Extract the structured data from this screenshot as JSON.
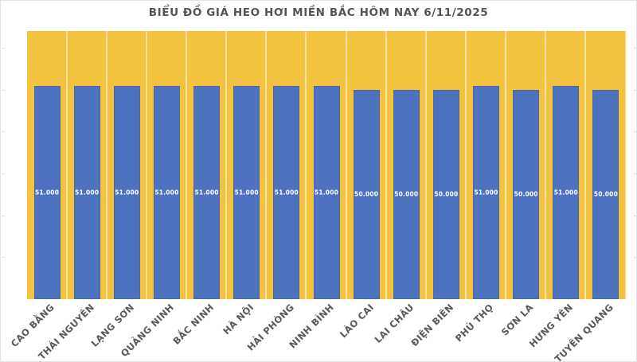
{
  "window": {
    "background": "#FFFFFF",
    "border_color": "#E4E4E4"
  },
  "chart_data": {
    "type": "bar",
    "title": "BIỂU ĐỒ GIÁ HEO HƠI MIỀN BẮC HÔM NAY 6/11/2025",
    "categories": [
      "CAO BẰNG",
      "THÁI NGUYÊN",
      "LẠNG SƠN",
      "QUẢNG NINH",
      "BẮC NINH",
      "HÀ NỘI",
      "HẢI PHÒNG",
      "NINH BÌNH",
      "LÀO CAI",
      "LAI CHÂU",
      "ĐIỆN BIÊN",
      "PHÚ THỌ",
      "SƠN LA",
      "HƯNG YÊN",
      "TUYÊN QUANG"
    ],
    "values": [
      51000,
      51000,
      51000,
      51000,
      51000,
      51000,
      51000,
      51000,
      50000,
      50000,
      50000,
      51000,
      50000,
      51000,
      50000
    ],
    "data_labels": [
      "51.000",
      "51.000",
      "51.000",
      "51.000",
      "51.000",
      "51.000",
      "51.000",
      "51.000",
      "50.000",
      "50.000",
      "50.000",
      "51.000",
      "50.000",
      "51.000",
      "50.000"
    ],
    "xlabel": "",
    "ylabel": "",
    "ylim": [
      0,
      64000
    ],
    "y_major_unit": 10000,
    "y_tick_labels_visible": false,
    "legend_position": "none",
    "grid": "vertical-category-separators",
    "colors": {
      "plot_background": "#F3C23E",
      "bar_fill": "#4C72C0",
      "data_label_text": "#FFFFFF",
      "title_text": "#545454",
      "category_label_text": "#58595B",
      "separator_line": "#F6ECC4",
      "edge_tick": "#DCDCDC"
    }
  }
}
